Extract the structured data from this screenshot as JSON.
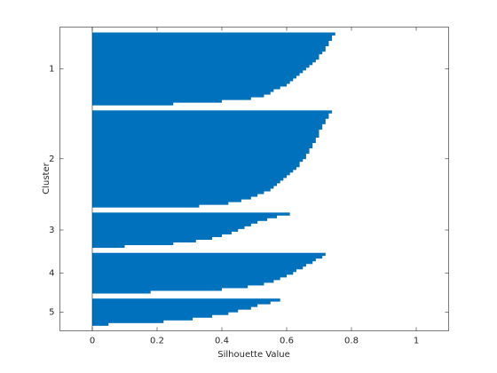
{
  "chart_data": {
    "type": "silhouette",
    "xlabel": "Silhouette Value",
    "ylabel": "Cluster",
    "categories": [
      "1",
      "2",
      "3",
      "4",
      "5"
    ],
    "values": [
      [
        0.75,
        0.74,
        0.74,
        0.73,
        0.73,
        0.72,
        0.72,
        0.71,
        0.7,
        0.7,
        0.69,
        0.68,
        0.67,
        0.66,
        0.65,
        0.64,
        0.63,
        0.62,
        0.61,
        0.6,
        0.58,
        0.56,
        0.55,
        0.53,
        0.49,
        0.4,
        0.25
      ],
      [
        0.74,
        0.73,
        0.73,
        0.72,
        0.72,
        0.71,
        0.71,
        0.7,
        0.7,
        0.7,
        0.69,
        0.69,
        0.68,
        0.68,
        0.67,
        0.67,
        0.66,
        0.66,
        0.65,
        0.64,
        0.64,
        0.63,
        0.62,
        0.61,
        0.6,
        0.59,
        0.58,
        0.57,
        0.56,
        0.55,
        0.53,
        0.51,
        0.49,
        0.46,
        0.42,
        0.33
      ],
      [
        0.61,
        0.57,
        0.54,
        0.51,
        0.49,
        0.47,
        0.45,
        0.43,
        0.4,
        0.37,
        0.32,
        0.25,
        0.1
      ],
      [
        0.72,
        0.71,
        0.69,
        0.68,
        0.66,
        0.65,
        0.63,
        0.62,
        0.6,
        0.58,
        0.56,
        0.53,
        0.48,
        0.4,
        0.18
      ],
      [
        0.58,
        0.55,
        0.51,
        0.49,
        0.45,
        0.42,
        0.37,
        0.31,
        0.22,
        0.05
      ]
    ],
    "color": "#0072bd",
    "xlim": [
      -0.1,
      1.1
    ],
    "xticks": [
      0,
      0.2,
      0.4,
      0.6,
      0.8,
      1
    ]
  }
}
